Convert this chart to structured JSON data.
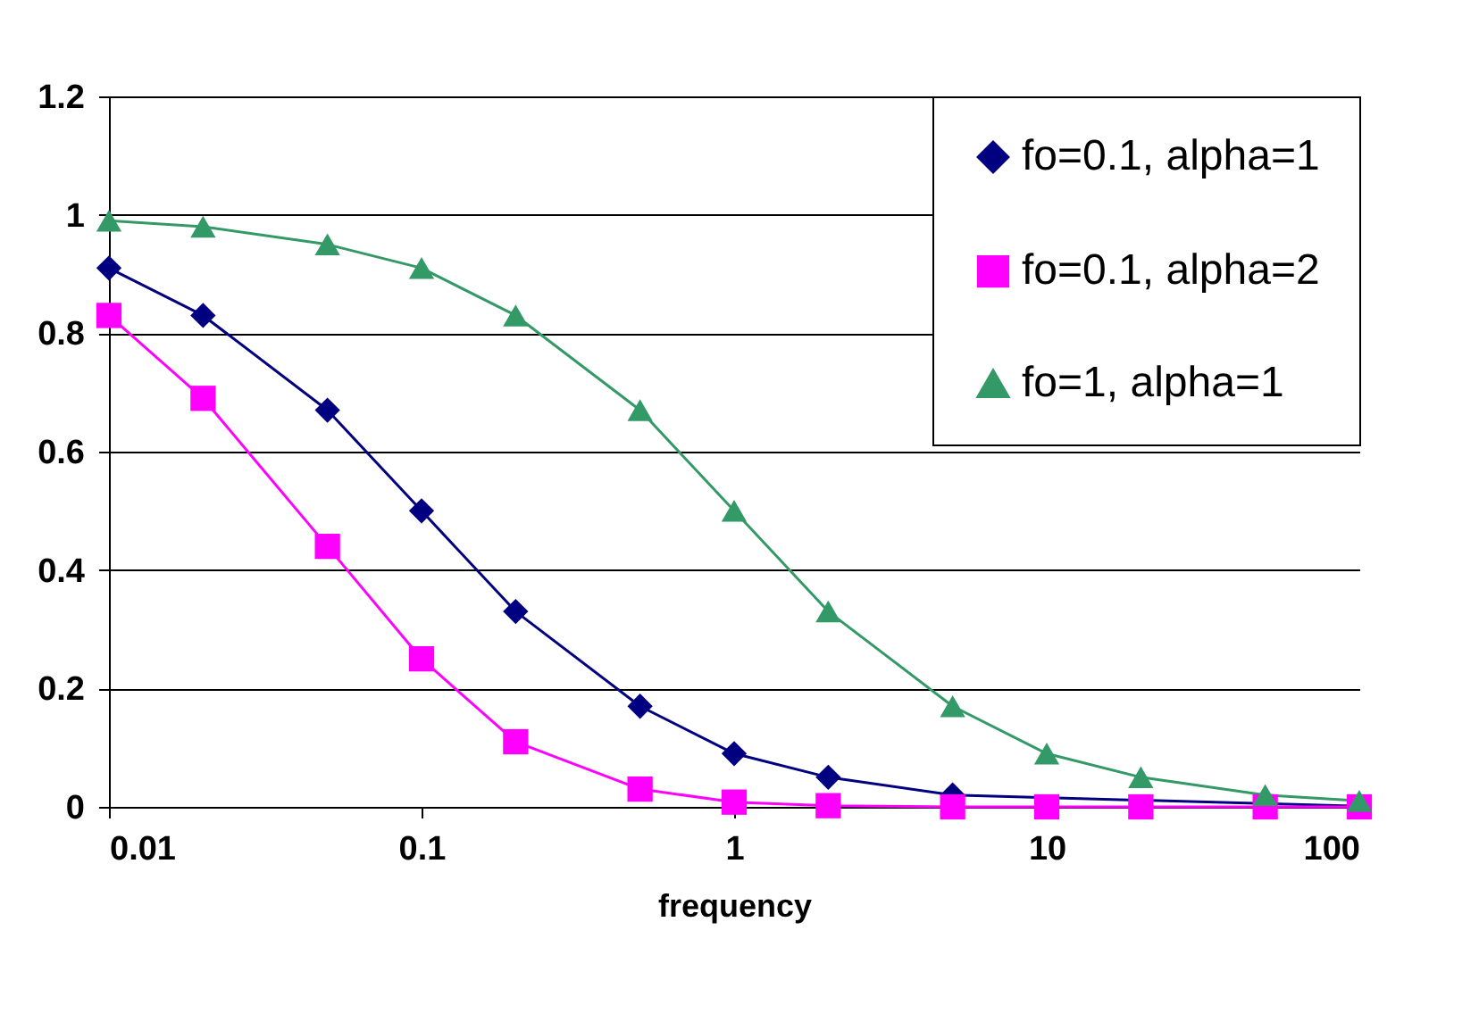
{
  "chart_data": {
    "type": "line",
    "xlabel": "frequency",
    "x": [
      0.01,
      0.02,
      0.05,
      0.1,
      0.2,
      0.5,
      1,
      2,
      5,
      10,
      20,
      50,
      100
    ],
    "series": [
      {
        "name": "fo=0.1, alpha=1",
        "color": "#000080",
        "marker": "diamond",
        "values": [
          0.91,
          0.83,
          0.67,
          0.5,
          0.33,
          0.17,
          0.09,
          0.05,
          0.02,
          null,
          null,
          null,
          0.001
        ]
      },
      {
        "name": "fo=0.1, alpha=2",
        "color": "#ff00ff",
        "marker": "square",
        "values": [
          0.83,
          0.69,
          0.44,
          0.25,
          0.11,
          0.03,
          0.008,
          0.002,
          0,
          0,
          0,
          0,
          0
        ]
      },
      {
        "name": "fo=1, alpha=1",
        "color": "#339966",
        "marker": "triangle",
        "values": [
          0.99,
          0.98,
          0.95,
          0.91,
          0.83,
          0.67,
          0.5,
          0.33,
          0.17,
          0.09,
          0.05,
          0.02,
          0.01
        ]
      }
    ],
    "log": "x",
    "xlim": [
      0.01,
      100
    ],
    "xticks": [
      0.01,
      0.1,
      1,
      10,
      100
    ],
    "ylim": [
      0,
      1.2
    ],
    "yticks": [
      0,
      0.2,
      0.4,
      0.6,
      0.8,
      1,
      1.2
    ],
    "grid": "y",
    "legend": "top right"
  }
}
